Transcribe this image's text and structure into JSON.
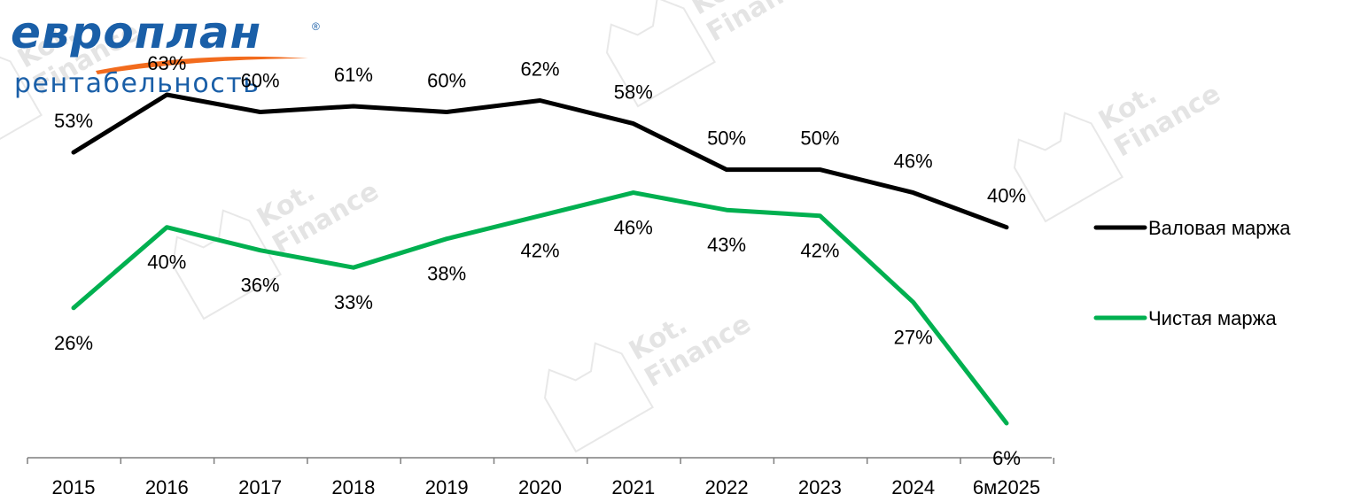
{
  "brand": {
    "logo_text": "европлан",
    "registered_mark": "®",
    "subtitle": "рентабельность"
  },
  "watermark": {
    "line1": "Kot.",
    "line2": "Finance"
  },
  "colors": {
    "gross_margin": "#000000",
    "net_margin": "#00b050",
    "brand_blue": "#1a5fa8",
    "brand_orange": "#f26b1d",
    "axis": "#7f7f7f"
  },
  "chart_data": {
    "type": "line",
    "title": "рентабельность",
    "categories": [
      "2015",
      "2016",
      "2017",
      "2018",
      "2019",
      "2020",
      "2021",
      "2022",
      "2023",
      "2024",
      "6м2025"
    ],
    "series": [
      {
        "name": "Валовая маржа",
        "values": [
          53,
          63,
          60,
          61,
          60,
          62,
          58,
          50,
          50,
          46,
          40
        ],
        "labels": [
          "53%",
          "63%",
          "60%",
          "61%",
          "60%",
          "62%",
          "58%",
          "50%",
          "50%",
          "46%",
          "40%"
        ],
        "color": "#000000"
      },
      {
        "name": "Чистая маржа",
        "values": [
          26,
          40,
          36,
          33,
          38,
          42,
          46,
          43,
          42,
          27,
          6
        ],
        "labels": [
          "26%",
          "40%",
          "36%",
          "33%",
          "38%",
          "42%",
          "46%",
          "43%",
          "42%",
          "27%",
          "6%"
        ],
        "color": "#00b050"
      }
    ],
    "legend": {
      "position": "right",
      "items": [
        "Валовая маржа",
        "Чистая маржа"
      ]
    },
    "grid": false,
    "ylim": [
      0,
      70
    ]
  }
}
